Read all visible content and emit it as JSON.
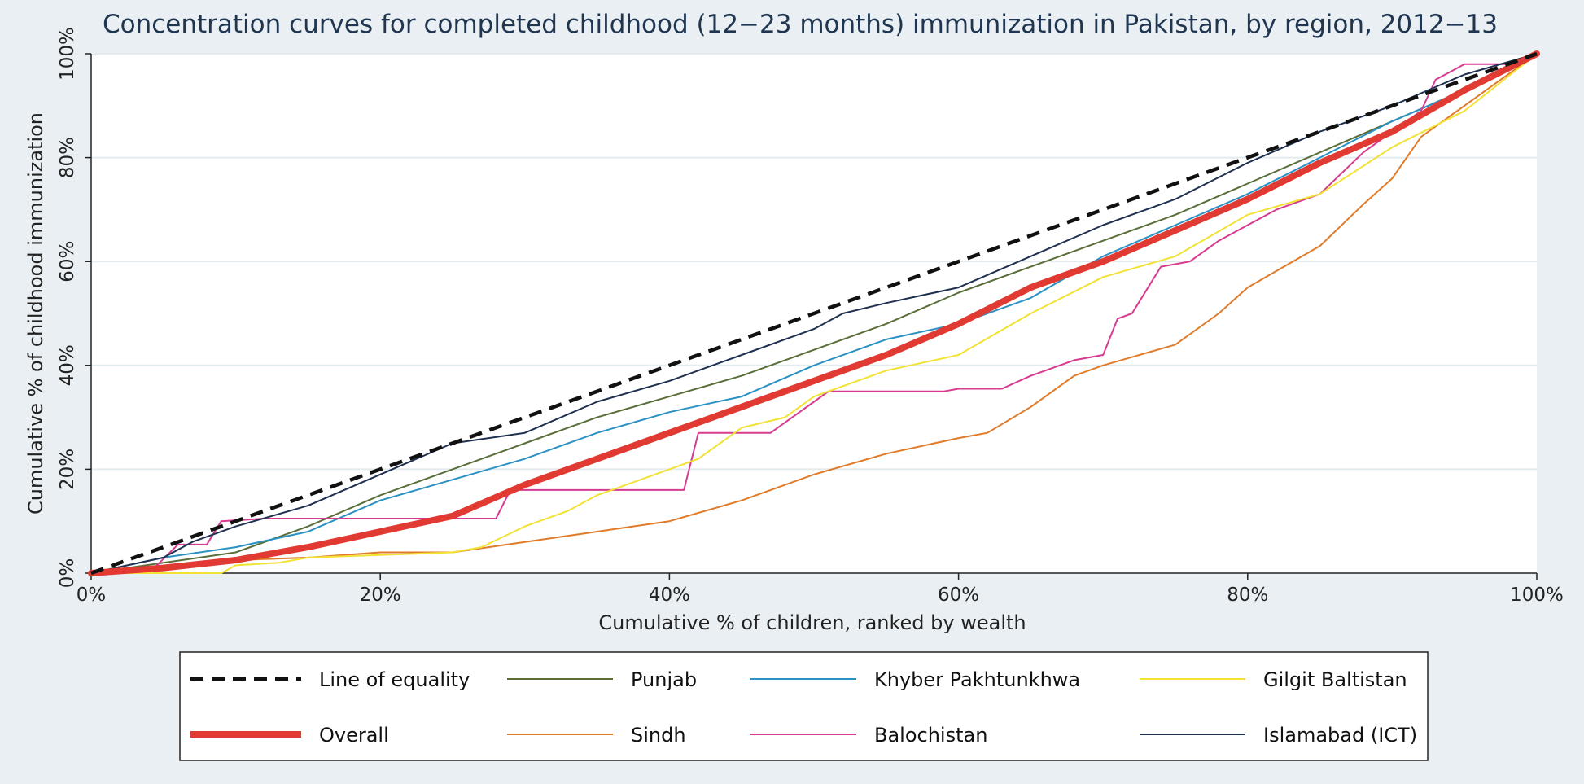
{
  "chart_data": {
    "type": "line",
    "title": "Concentration curves for completed childhood (12−23 months) immunization in Pakistan, by region, 2012−13",
    "xlabel": "Cumulative % of children, ranked by wealth",
    "ylabel": "Cumulative % of childhood immunization",
    "xlim": [
      0,
      100
    ],
    "ylim": [
      0,
      100
    ],
    "xticks": [
      0,
      20,
      40,
      60,
      80,
      100
    ],
    "yticks": [
      0,
      20,
      40,
      60,
      80,
      100
    ],
    "xtick_labels": [
      "0%",
      "20%",
      "40%",
      "60%",
      "80%",
      "100%"
    ],
    "ytick_labels": [
      "0%",
      "20%",
      "40%",
      "60%",
      "80%",
      "100%"
    ],
    "grid": "horizontal",
    "legend_position": "bottom",
    "series": [
      {
        "name": "Line of equality",
        "color": "#111111",
        "style": "dashed",
        "x": [
          0,
          100
        ],
        "y": [
          0,
          100
        ]
      },
      {
        "name": "Overall",
        "color": "#e03a33",
        "style": "thick",
        "x": [
          0,
          5,
          10,
          15,
          20,
          25,
          30,
          35,
          40,
          42,
          45,
          50,
          55,
          60,
          65,
          70,
          75,
          80,
          85,
          90,
          95,
          100
        ],
        "y": [
          0,
          1,
          2.5,
          5,
          8,
          11,
          17,
          22,
          27,
          29,
          32,
          37,
          42,
          48,
          55,
          60,
          66,
          72,
          79,
          85,
          93,
          100
        ]
      },
      {
        "name": "Punjab",
        "color": "#5a6e3a",
        "style": "solid",
        "x": [
          0,
          5,
          10,
          15,
          20,
          25,
          30,
          35,
          40,
          45,
          50,
          55,
          60,
          65,
          70,
          75,
          80,
          85,
          90,
          95,
          100
        ],
        "y": [
          0,
          2,
          4,
          9,
          15,
          20,
          25,
          30,
          34,
          38,
          43,
          48,
          54,
          59,
          64,
          69,
          75,
          81,
          87,
          93,
          100
        ]
      },
      {
        "name": "Sindh",
        "color": "#e07b2a",
        "style": "solid",
        "x": [
          0,
          5,
          10,
          15,
          20,
          25,
          30,
          35,
          40,
          45,
          50,
          55,
          60,
          62,
          65,
          68,
          70,
          75,
          78,
          80,
          85,
          88,
          90,
          92,
          95,
          100
        ],
        "y": [
          0,
          1,
          2.5,
          3,
          4,
          4,
          6,
          8,
          10,
          14,
          19,
          23,
          26,
          27,
          32,
          38,
          40,
          44,
          50,
          55,
          63,
          71,
          76,
          84,
          90,
          100
        ]
      },
      {
        "name": "Khyber Pakhtunkhwa",
        "color": "#2a91c2",
        "style": "solid",
        "x": [
          0,
          5,
          10,
          15,
          20,
          25,
          30,
          35,
          40,
          45,
          50,
          55,
          60,
          65,
          70,
          75,
          80,
          85,
          90,
          95,
          100
        ],
        "y": [
          0,
          3,
          5,
          8,
          14,
          18,
          22,
          27,
          31,
          34,
          40,
          45,
          48,
          53,
          61,
          67,
          73,
          80,
          87,
          93,
          100
        ]
      },
      {
        "name": "Balochistan",
        "color": "#d63b8f",
        "style": "solid",
        "x": [
          0,
          4,
          6,
          8,
          9,
          12,
          28,
          29,
          41,
          42,
          47,
          50,
          51,
          59,
          60,
          63,
          65,
          68,
          70,
          71,
          72,
          74,
          76,
          78,
          80,
          82,
          85,
          88,
          90,
          92,
          93,
          95,
          98,
          100
        ],
        "y": [
          0,
          0,
          5.5,
          5.5,
          10,
          10.5,
          10.5,
          16,
          16,
          27,
          27,
          33,
          35,
          35,
          35.5,
          35.5,
          38,
          41,
          42,
          49,
          50,
          59,
          60,
          64,
          67,
          70,
          73,
          81,
          85,
          89,
          95,
          98,
          98,
          100
        ]
      },
      {
        "name": "Gilgit Baltistan",
        "color": "#f2e233",
        "style": "solid",
        "x": [
          0,
          9,
          10,
          13,
          15,
          20,
          25,
          27,
          30,
          33,
          35,
          38,
          40,
          42,
          45,
          48,
          50,
          55,
          60,
          65,
          70,
          75,
          80,
          85,
          90,
          95,
          100
        ],
        "y": [
          0,
          0,
          1.5,
          2,
          3,
          3.5,
          4,
          5,
          9,
          12,
          15,
          18,
          20,
          22,
          28,
          30,
          34,
          39,
          42,
          50,
          57,
          61,
          69,
          73,
          82,
          89,
          100
        ]
      },
      {
        "name": "Islamabad (ICT)",
        "color": "#1f3050",
        "style": "solid",
        "x": [
          0,
          5,
          7,
          10,
          15,
          20,
          25,
          30,
          35,
          40,
          45,
          50,
          52,
          55,
          60,
          65,
          70,
          75,
          80,
          85,
          90,
          95,
          100
        ],
        "y": [
          0,
          3,
          6,
          9,
          13,
          19,
          25,
          27,
          33,
          37,
          42,
          47,
          50,
          52,
          55,
          61,
          67,
          72,
          79,
          85,
          90,
          96,
          100
        ]
      }
    ]
  }
}
